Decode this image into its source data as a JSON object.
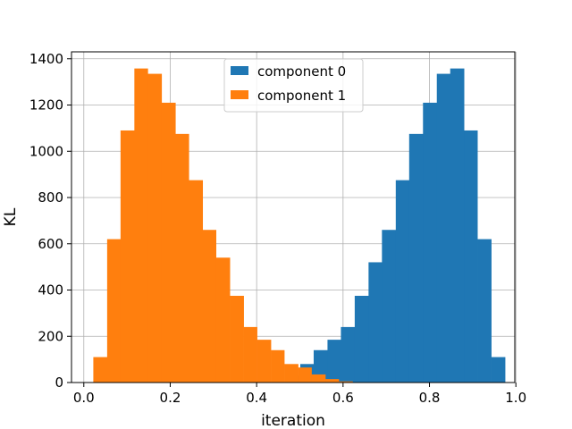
{
  "chart_data": {
    "type": "bar",
    "title": "",
    "xlabel": "iteration",
    "ylabel": "KL",
    "xlim": [
      -0.0285,
      0.9975
    ],
    "ylim": [
      0,
      1430
    ],
    "xticks": [
      0.0,
      0.2,
      0.4,
      0.6,
      0.8,
      1.0
    ],
    "xtick_labels": [
      "0.0",
      "0.2",
      "0.4",
      "0.6",
      "0.8",
      "1.0"
    ],
    "yticks": [
      0,
      200,
      400,
      600,
      800,
      1000,
      1200,
      1400
    ],
    "ytick_labels": [
      "0",
      "200",
      "400",
      "600",
      "800",
      "1000",
      "1200",
      "1400"
    ],
    "grid": true,
    "legend_position": "upper center",
    "series": [
      {
        "name": "component 0",
        "color": "#1f77b4",
        "bin_edges": [
          0.469,
          0.501,
          0.532,
          0.564,
          0.595,
          0.627,
          0.659,
          0.69,
          0.722,
          0.753,
          0.785,
          0.817,
          0.848,
          0.88,
          0.911,
          0.943,
          0.975
        ],
        "values": [
          30,
          80,
          140,
          185,
          240,
          375,
          520,
          660,
          875,
          1075,
          1210,
          1335,
          1358,
          1090,
          620,
          110
        ]
      },
      {
        "name": "component 1",
        "color": "#ff7f0e",
        "bin_edges": [
          0.022,
          0.054,
          0.085,
          0.117,
          0.148,
          0.18,
          0.212,
          0.243,
          0.275,
          0.306,
          0.338,
          0.37,
          0.401,
          0.433,
          0.464,
          0.496,
          0.527,
          0.559,
          0.59,
          0.622,
          0.654
        ],
        "values": [
          110,
          620,
          1090,
          1358,
          1335,
          1210,
          1075,
          875,
          660,
          540,
          375,
          240,
          185,
          140,
          80,
          65,
          35,
          15,
          5,
          2
        ]
      }
    ]
  }
}
